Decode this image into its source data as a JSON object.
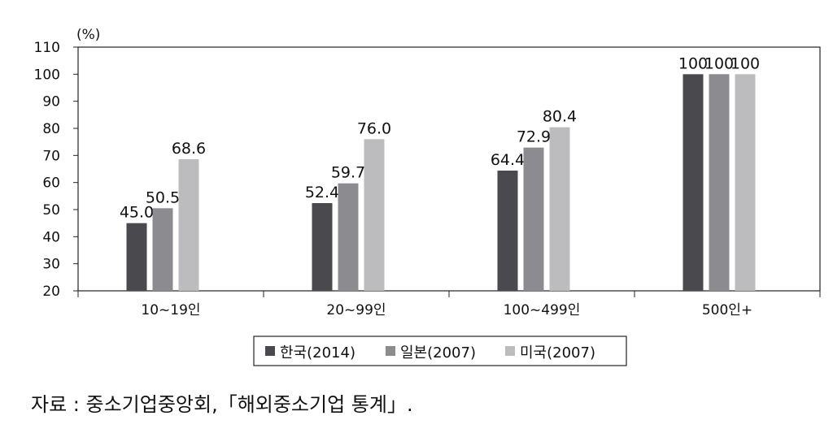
{
  "chart_data": {
    "type": "bar",
    "unit_label": "(%)",
    "categories": [
      "10~19인",
      "20~99인",
      "100~499인",
      "500인+"
    ],
    "series": [
      {
        "name": "한국(2014)",
        "color": "#4a4a4e",
        "values": [
          45.0,
          52.4,
          64.4,
          100
        ],
        "labels": [
          "45.0",
          "52.4",
          "64.4",
          "100"
        ]
      },
      {
        "name": "일본(2007)",
        "color": "#8c8c90",
        "values": [
          50.5,
          59.7,
          72.9,
          100
        ],
        "labels": [
          "50.5",
          "59.7",
          "72.9",
          "100"
        ]
      },
      {
        "name": "미국(2007)",
        "color": "#bcbcbe",
        "values": [
          68.6,
          76.0,
          80.4,
          100
        ],
        "labels": [
          "68.6",
          "76.0",
          "80.4",
          "100"
        ]
      }
    ],
    "ylim": [
      20,
      110
    ],
    "yticks": [
      20,
      30,
      40,
      50,
      60,
      70,
      80,
      90,
      100,
      110
    ],
    "legend_position": "bottom-center",
    "grid": false
  },
  "source_note": "자료 : 중소기업중앙회,「해외중소기업 통계」."
}
